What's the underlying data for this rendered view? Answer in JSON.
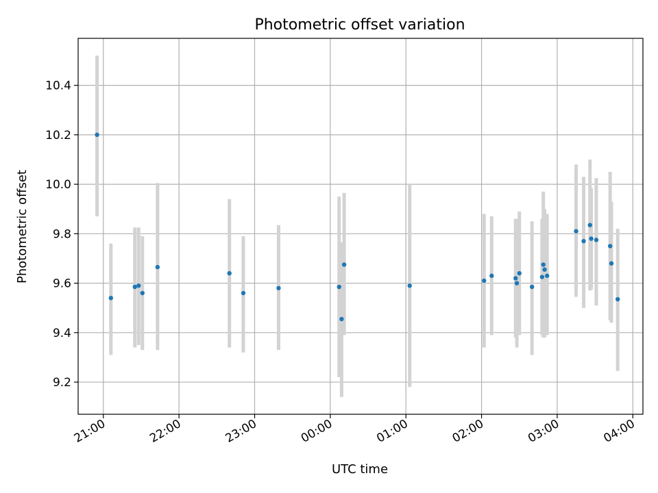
{
  "chart_data": {
    "type": "scatter",
    "title": "Photometric offset variation",
    "xlabel": "UTC time",
    "ylabel": "Photometric offset",
    "grid": true,
    "x_axis": {
      "kind": "time",
      "start": "20:40",
      "end": "04:08",
      "ticks": [
        "21:00",
        "22:00",
        "23:00",
        "00:00",
        "01:00",
        "02:00",
        "03:00",
        "04:00"
      ]
    },
    "y_axis": {
      "ylim": [
        9.07,
        10.59
      ],
      "ticks": [
        9.2,
        9.4,
        9.6,
        9.8,
        10.0,
        10.2,
        10.4
      ],
      "tick_labels": [
        "9.2",
        "9.4",
        "9.6",
        "9.8",
        "10.0",
        "10.2",
        "10.4"
      ]
    },
    "series": [
      {
        "marker_color": "#1f77b4",
        "errorbar_color": "#d3d3d3",
        "points": [
          {
            "time": "20:55",
            "y": 10.2,
            "lo": 9.87,
            "hi": 10.52
          },
          {
            "time": "21:06",
            "y": 9.54,
            "lo": 9.31,
            "hi": 9.76
          },
          {
            "time": "21:25",
            "y": 9.585,
            "lo": 9.34,
            "hi": 9.825
          },
          {
            "time": "21:28",
            "y": 9.59,
            "lo": 9.35,
            "hi": 9.825
          },
          {
            "time": "21:31",
            "y": 9.56,
            "lo": 9.33,
            "hi": 9.79
          },
          {
            "time": "21:43",
            "y": 9.665,
            "lo": 9.33,
            "hi": 10.005
          },
          {
            "time": "22:40",
            "y": 9.64,
            "lo": 9.34,
            "hi": 9.94
          },
          {
            "time": "22:51",
            "y": 9.56,
            "lo": 9.32,
            "hi": 9.79
          },
          {
            "time": "23:19",
            "y": 9.58,
            "lo": 9.33,
            "hi": 9.835
          },
          {
            "time": "00:07",
            "y": 9.585,
            "lo": 9.22,
            "hi": 9.95
          },
          {
            "time": "00:09",
            "y": 9.455,
            "lo": 9.14,
            "hi": 9.765
          },
          {
            "time": "00:11",
            "y": 9.675,
            "lo": 9.39,
            "hi": 9.965
          },
          {
            "time": "01:03",
            "y": 9.59,
            "lo": 9.18,
            "hi": 10.0
          },
          {
            "time": "02:02",
            "y": 9.61,
            "lo": 9.34,
            "hi": 9.88
          },
          {
            "time": "02:08",
            "y": 9.63,
            "lo": 9.39,
            "hi": 9.87
          },
          {
            "time": "02:27",
            "y": 9.62,
            "lo": 9.38,
            "hi": 9.86
          },
          {
            "time": "02:28",
            "y": 9.6,
            "lo": 9.34,
            "hi": 9.86
          },
          {
            "time": "02:30",
            "y": 9.64,
            "lo": 9.39,
            "hi": 9.89
          },
          {
            "time": "02:40",
            "y": 9.585,
            "lo": 9.31,
            "hi": 9.85
          },
          {
            "time": "02:48",
            "y": 9.625,
            "lo": 9.39,
            "hi": 9.86
          },
          {
            "time": "02:49",
            "y": 9.675,
            "lo": 9.38,
            "hi": 9.97
          },
          {
            "time": "02:50",
            "y": 9.655,
            "lo": 9.38,
            "hi": 9.9
          },
          {
            "time": "02:52",
            "y": 9.63,
            "lo": 9.39,
            "hi": 9.88
          },
          {
            "time": "03:15",
            "y": 9.81,
            "lo": 9.545,
            "hi": 10.08
          },
          {
            "time": "03:21",
            "y": 9.77,
            "lo": 9.5,
            "hi": 10.03
          },
          {
            "time": "03:26",
            "y": 9.835,
            "lo": 9.57,
            "hi": 10.1
          },
          {
            "time": "03:27",
            "y": 9.78,
            "lo": 9.575,
            "hi": 9.985
          },
          {
            "time": "03:31",
            "y": 9.775,
            "lo": 9.51,
            "hi": 10.025
          },
          {
            "time": "03:42",
            "y": 9.75,
            "lo": 9.45,
            "hi": 10.05
          },
          {
            "time": "03:43",
            "y": 9.68,
            "lo": 9.44,
            "hi": 9.93
          },
          {
            "time": "03:48",
            "y": 9.535,
            "lo": 9.245,
            "hi": 9.82
          }
        ]
      }
    ]
  }
}
